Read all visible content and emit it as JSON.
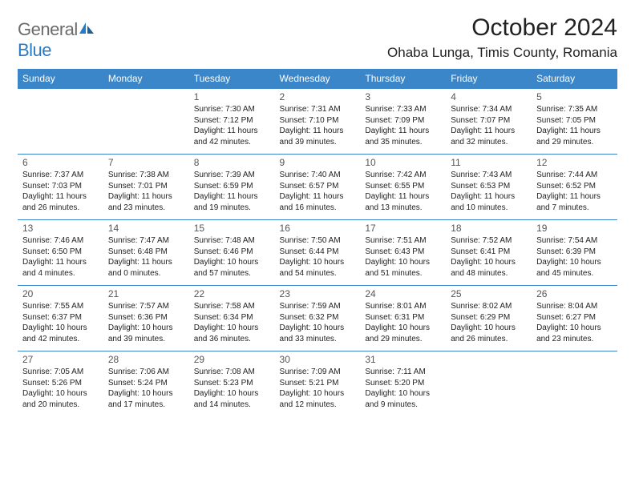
{
  "brand": {
    "name_part1": "General",
    "name_part2": "Blue"
  },
  "title": "October 2024",
  "location": "Ohaba Lunga, Timis County, Romania",
  "colors": {
    "header_bg": "#3a86c8",
    "row_border": "#3a86c8",
    "brand_gray": "#6b6b6b",
    "brand_blue": "#2b7ac0"
  },
  "day_headers": [
    "Sunday",
    "Monday",
    "Tuesday",
    "Wednesday",
    "Thursday",
    "Friday",
    "Saturday"
  ],
  "weeks": [
    [
      null,
      null,
      {
        "n": "1",
        "sr": "Sunrise: 7:30 AM",
        "ss": "Sunset: 7:12 PM",
        "d1": "Daylight: 11 hours",
        "d2": "and 42 minutes."
      },
      {
        "n": "2",
        "sr": "Sunrise: 7:31 AM",
        "ss": "Sunset: 7:10 PM",
        "d1": "Daylight: 11 hours",
        "d2": "and 39 minutes."
      },
      {
        "n": "3",
        "sr": "Sunrise: 7:33 AM",
        "ss": "Sunset: 7:09 PM",
        "d1": "Daylight: 11 hours",
        "d2": "and 35 minutes."
      },
      {
        "n": "4",
        "sr": "Sunrise: 7:34 AM",
        "ss": "Sunset: 7:07 PM",
        "d1": "Daylight: 11 hours",
        "d2": "and 32 minutes."
      },
      {
        "n": "5",
        "sr": "Sunrise: 7:35 AM",
        "ss": "Sunset: 7:05 PM",
        "d1": "Daylight: 11 hours",
        "d2": "and 29 minutes."
      }
    ],
    [
      {
        "n": "6",
        "sr": "Sunrise: 7:37 AM",
        "ss": "Sunset: 7:03 PM",
        "d1": "Daylight: 11 hours",
        "d2": "and 26 minutes."
      },
      {
        "n": "7",
        "sr": "Sunrise: 7:38 AM",
        "ss": "Sunset: 7:01 PM",
        "d1": "Daylight: 11 hours",
        "d2": "and 23 minutes."
      },
      {
        "n": "8",
        "sr": "Sunrise: 7:39 AM",
        "ss": "Sunset: 6:59 PM",
        "d1": "Daylight: 11 hours",
        "d2": "and 19 minutes."
      },
      {
        "n": "9",
        "sr": "Sunrise: 7:40 AM",
        "ss": "Sunset: 6:57 PM",
        "d1": "Daylight: 11 hours",
        "d2": "and 16 minutes."
      },
      {
        "n": "10",
        "sr": "Sunrise: 7:42 AM",
        "ss": "Sunset: 6:55 PM",
        "d1": "Daylight: 11 hours",
        "d2": "and 13 minutes."
      },
      {
        "n": "11",
        "sr": "Sunrise: 7:43 AM",
        "ss": "Sunset: 6:53 PM",
        "d1": "Daylight: 11 hours",
        "d2": "and 10 minutes."
      },
      {
        "n": "12",
        "sr": "Sunrise: 7:44 AM",
        "ss": "Sunset: 6:52 PM",
        "d1": "Daylight: 11 hours",
        "d2": "and 7 minutes."
      }
    ],
    [
      {
        "n": "13",
        "sr": "Sunrise: 7:46 AM",
        "ss": "Sunset: 6:50 PM",
        "d1": "Daylight: 11 hours",
        "d2": "and 4 minutes."
      },
      {
        "n": "14",
        "sr": "Sunrise: 7:47 AM",
        "ss": "Sunset: 6:48 PM",
        "d1": "Daylight: 11 hours",
        "d2": "and 0 minutes."
      },
      {
        "n": "15",
        "sr": "Sunrise: 7:48 AM",
        "ss": "Sunset: 6:46 PM",
        "d1": "Daylight: 10 hours",
        "d2": "and 57 minutes."
      },
      {
        "n": "16",
        "sr": "Sunrise: 7:50 AM",
        "ss": "Sunset: 6:44 PM",
        "d1": "Daylight: 10 hours",
        "d2": "and 54 minutes."
      },
      {
        "n": "17",
        "sr": "Sunrise: 7:51 AM",
        "ss": "Sunset: 6:43 PM",
        "d1": "Daylight: 10 hours",
        "d2": "and 51 minutes."
      },
      {
        "n": "18",
        "sr": "Sunrise: 7:52 AM",
        "ss": "Sunset: 6:41 PM",
        "d1": "Daylight: 10 hours",
        "d2": "and 48 minutes."
      },
      {
        "n": "19",
        "sr": "Sunrise: 7:54 AM",
        "ss": "Sunset: 6:39 PM",
        "d1": "Daylight: 10 hours",
        "d2": "and 45 minutes."
      }
    ],
    [
      {
        "n": "20",
        "sr": "Sunrise: 7:55 AM",
        "ss": "Sunset: 6:37 PM",
        "d1": "Daylight: 10 hours",
        "d2": "and 42 minutes."
      },
      {
        "n": "21",
        "sr": "Sunrise: 7:57 AM",
        "ss": "Sunset: 6:36 PM",
        "d1": "Daylight: 10 hours",
        "d2": "and 39 minutes."
      },
      {
        "n": "22",
        "sr": "Sunrise: 7:58 AM",
        "ss": "Sunset: 6:34 PM",
        "d1": "Daylight: 10 hours",
        "d2": "and 36 minutes."
      },
      {
        "n": "23",
        "sr": "Sunrise: 7:59 AM",
        "ss": "Sunset: 6:32 PM",
        "d1": "Daylight: 10 hours",
        "d2": "and 33 minutes."
      },
      {
        "n": "24",
        "sr": "Sunrise: 8:01 AM",
        "ss": "Sunset: 6:31 PM",
        "d1": "Daylight: 10 hours",
        "d2": "and 29 minutes."
      },
      {
        "n": "25",
        "sr": "Sunrise: 8:02 AM",
        "ss": "Sunset: 6:29 PM",
        "d1": "Daylight: 10 hours",
        "d2": "and 26 minutes."
      },
      {
        "n": "26",
        "sr": "Sunrise: 8:04 AM",
        "ss": "Sunset: 6:27 PM",
        "d1": "Daylight: 10 hours",
        "d2": "and 23 minutes."
      }
    ],
    [
      {
        "n": "27",
        "sr": "Sunrise: 7:05 AM",
        "ss": "Sunset: 5:26 PM",
        "d1": "Daylight: 10 hours",
        "d2": "and 20 minutes."
      },
      {
        "n": "28",
        "sr": "Sunrise: 7:06 AM",
        "ss": "Sunset: 5:24 PM",
        "d1": "Daylight: 10 hours",
        "d2": "and 17 minutes."
      },
      {
        "n": "29",
        "sr": "Sunrise: 7:08 AM",
        "ss": "Sunset: 5:23 PM",
        "d1": "Daylight: 10 hours",
        "d2": "and 14 minutes."
      },
      {
        "n": "30",
        "sr": "Sunrise: 7:09 AM",
        "ss": "Sunset: 5:21 PM",
        "d1": "Daylight: 10 hours",
        "d2": "and 12 minutes."
      },
      {
        "n": "31",
        "sr": "Sunrise: 7:11 AM",
        "ss": "Sunset: 5:20 PM",
        "d1": "Daylight: 10 hours",
        "d2": "and 9 minutes."
      },
      null,
      null
    ]
  ]
}
